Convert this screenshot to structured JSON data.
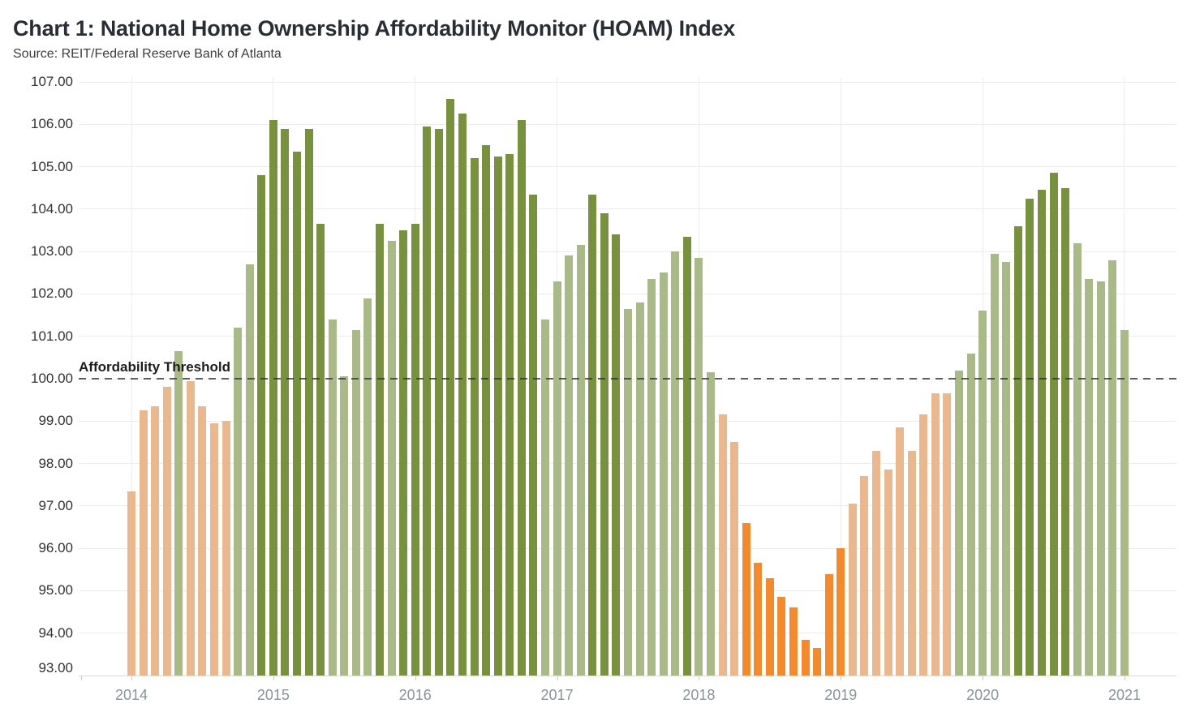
{
  "header": {
    "title": "Chart 1: National Home Ownership Affordability Monitor (HOAM) Index",
    "source": "Source: REIT/Federal Reserve Bank of Atlanta"
  },
  "chart_data": {
    "type": "bar",
    "title": "Chart 1: National Home Ownership Affordability Monitor (HOAM) Index",
    "subtitle": "Source: REIT/Federal Reserve Bank of Atlanta",
    "xlabel": "",
    "ylabel": "",
    "ylim": [
      93,
      107.1
    ],
    "grid": "horizontal gridlines every 1.00 plus faint vertical gridlines at each January",
    "legend_position": "none",
    "y_tick_labels": [
      "93.00",
      "94.00",
      "95.00",
      "96.00",
      "97.00",
      "98.00",
      "99.00",
      "100.00",
      "101.00",
      "102.00",
      "103.00",
      "104.00",
      "105.00",
      "106.00",
      "107.00"
    ],
    "x_tick_labels": [
      "2014",
      "2015",
      "2016",
      "2017",
      "2018",
      "2019",
      "2020",
      "2021"
    ],
    "threshold": {
      "value": 100,
      "label": "Affordability Threshold"
    },
    "colors": {
      "dark-green": "#78913f",
      "light-green": "#a9ba88",
      "light-orange": "#e9b88e",
      "dark-orange": "#f38b2e"
    },
    "series": [
      {
        "name": "HOAM Index",
        "points": [
          {
            "month": "Jan 2014",
            "value": 97.35,
            "band": "light-orange"
          },
          {
            "month": "Feb 2014",
            "value": 99.25,
            "band": "light-orange"
          },
          {
            "month": "Mar 2014",
            "value": 99.35,
            "band": "light-orange"
          },
          {
            "month": "Apr 2014",
            "value": 99.8,
            "band": "light-orange"
          },
          {
            "month": "May 2014",
            "value": 100.65,
            "band": "light-green"
          },
          {
            "month": "Jun 2014",
            "value": 99.95,
            "band": "light-orange"
          },
          {
            "month": "Jul 2014",
            "value": 99.35,
            "band": "light-orange"
          },
          {
            "month": "Aug 2014",
            "value": 98.95,
            "band": "light-orange"
          },
          {
            "month": "Sep 2014",
            "value": 99.0,
            "band": "light-orange"
          },
          {
            "month": "Oct 2014",
            "value": 101.2,
            "band": "light-green"
          },
          {
            "month": "Nov 2014",
            "value": 102.7,
            "band": "light-green"
          },
          {
            "month": "Dec 2014",
            "value": 104.8,
            "band": "dark-green"
          },
          {
            "month": "Jan 2015",
            "value": 106.1,
            "band": "dark-green"
          },
          {
            "month": "Feb 2015",
            "value": 105.9,
            "band": "dark-green"
          },
          {
            "month": "Mar 2015",
            "value": 105.35,
            "band": "dark-green"
          },
          {
            "month": "Apr 2015",
            "value": 105.9,
            "band": "dark-green"
          },
          {
            "month": "May 2015",
            "value": 103.65,
            "band": "dark-green"
          },
          {
            "month": "Jun 2015",
            "value": 101.4,
            "band": "light-green"
          },
          {
            "month": "Jul 2015",
            "value": 100.05,
            "band": "light-green"
          },
          {
            "month": "Aug 2015",
            "value": 101.15,
            "band": "light-green"
          },
          {
            "month": "Sep 2015",
            "value": 101.9,
            "band": "light-green"
          },
          {
            "month": "Oct 2015",
            "value": 103.65,
            "band": "dark-green"
          },
          {
            "month": "Nov 2015",
            "value": 103.25,
            "band": "light-green"
          },
          {
            "month": "Dec 2015",
            "value": 103.5,
            "band": "dark-green"
          },
          {
            "month": "Jan 2016",
            "value": 103.65,
            "band": "dark-green"
          },
          {
            "month": "Feb 2016",
            "value": 105.95,
            "band": "dark-green"
          },
          {
            "month": "Mar 2016",
            "value": 105.9,
            "band": "dark-green"
          },
          {
            "month": "Apr 2016",
            "value": 106.6,
            "band": "dark-green"
          },
          {
            "month": "May 2016",
            "value": 106.25,
            "band": "dark-green"
          },
          {
            "month": "Jun 2016",
            "value": 105.2,
            "band": "dark-green"
          },
          {
            "month": "Jul 2016",
            "value": 105.5,
            "band": "dark-green"
          },
          {
            "month": "Aug 2016",
            "value": 105.25,
            "band": "dark-green"
          },
          {
            "month": "Sep 2016",
            "value": 105.3,
            "band": "dark-green"
          },
          {
            "month": "Oct 2016",
            "value": 106.1,
            "band": "dark-green"
          },
          {
            "month": "Nov 2016",
            "value": 104.35,
            "band": "dark-green"
          },
          {
            "month": "Dec 2016",
            "value": 101.4,
            "band": "light-green"
          },
          {
            "month": "Jan 2017",
            "value": 102.3,
            "band": "light-green"
          },
          {
            "month": "Feb 2017",
            "value": 102.9,
            "band": "light-green"
          },
          {
            "month": "Mar 2017",
            "value": 103.15,
            "band": "light-green"
          },
          {
            "month": "Apr 2017",
            "value": 104.35,
            "band": "dark-green"
          },
          {
            "month": "May 2017",
            "value": 103.9,
            "band": "dark-green"
          },
          {
            "month": "Jun 2017",
            "value": 103.4,
            "band": "dark-green"
          },
          {
            "month": "Jul 2017",
            "value": 101.65,
            "band": "light-green"
          },
          {
            "month": "Aug 2017",
            "value": 101.8,
            "band": "light-green"
          },
          {
            "month": "Sep 2017",
            "value": 102.35,
            "band": "light-green"
          },
          {
            "month": "Oct 2017",
            "value": 102.5,
            "band": "light-green"
          },
          {
            "month": "Nov 2017",
            "value": 103.0,
            "band": "light-green"
          },
          {
            "month": "Dec 2017",
            "value": 103.35,
            "band": "dark-green"
          },
          {
            "month": "Jan 2018",
            "value": 102.85,
            "band": "light-green"
          },
          {
            "month": "Feb 2018",
            "value": 100.15,
            "band": "light-green"
          },
          {
            "month": "Mar 2018",
            "value": 99.15,
            "band": "light-orange"
          },
          {
            "month": "Apr 2018",
            "value": 98.5,
            "band": "light-orange"
          },
          {
            "month": "May 2018",
            "value": 96.6,
            "band": "dark-orange"
          },
          {
            "month": "Jun 2018",
            "value": 95.65,
            "band": "dark-orange"
          },
          {
            "month": "Jul 2018",
            "value": 95.3,
            "band": "dark-orange"
          },
          {
            "month": "Aug 2018",
            "value": 94.85,
            "band": "dark-orange"
          },
          {
            "month": "Sep 2018",
            "value": 94.6,
            "band": "dark-orange"
          },
          {
            "month": "Oct 2018",
            "value": 93.85,
            "band": "dark-orange"
          },
          {
            "month": "Nov 2018",
            "value": 93.65,
            "band": "dark-orange"
          },
          {
            "month": "Dec 2018",
            "value": 95.4,
            "band": "dark-orange"
          },
          {
            "month": "Jan 2019",
            "value": 96.0,
            "band": "dark-orange"
          },
          {
            "month": "Feb 2019",
            "value": 97.05,
            "band": "light-orange"
          },
          {
            "month": "Mar 2019",
            "value": 97.7,
            "band": "light-orange"
          },
          {
            "month": "Apr 2019",
            "value": 98.3,
            "band": "light-orange"
          },
          {
            "month": "May 2019",
            "value": 97.85,
            "band": "light-orange"
          },
          {
            "month": "Jun 2019",
            "value": 98.85,
            "band": "light-orange"
          },
          {
            "month": "Jul 2019",
            "value": 98.3,
            "band": "light-orange"
          },
          {
            "month": "Aug 2019",
            "value": 99.15,
            "band": "light-orange"
          },
          {
            "month": "Sep 2019",
            "value": 99.65,
            "band": "light-orange"
          },
          {
            "month": "Oct 2019",
            "value": 99.65,
            "band": "light-orange"
          },
          {
            "month": "Nov 2019",
            "value": 100.2,
            "band": "light-green"
          },
          {
            "month": "Dec 2019",
            "value": 100.6,
            "band": "light-green"
          },
          {
            "month": "Jan 2020",
            "value": 101.6,
            "band": "light-green"
          },
          {
            "month": "Feb 2020",
            "value": 102.95,
            "band": "light-green"
          },
          {
            "month": "Mar 2020",
            "value": 102.75,
            "band": "light-green"
          },
          {
            "month": "Apr 2020",
            "value": 103.6,
            "band": "dark-green"
          },
          {
            "month": "May 2020",
            "value": 104.25,
            "band": "dark-green"
          },
          {
            "month": "Jun 2020",
            "value": 104.45,
            "band": "dark-green"
          },
          {
            "month": "Jul 2020",
            "value": 104.85,
            "band": "dark-green"
          },
          {
            "month": "Aug 2020",
            "value": 104.5,
            "band": "dark-green"
          },
          {
            "month": "Sep 2020",
            "value": 103.2,
            "band": "light-green"
          },
          {
            "month": "Oct 2020",
            "value": 102.35,
            "band": "light-green"
          },
          {
            "month": "Nov 2020",
            "value": 102.3,
            "band": "light-green"
          },
          {
            "month": "Dec 2020",
            "value": 102.8,
            "band": "light-green"
          },
          {
            "month": "Jan 2021",
            "value": 101.15,
            "band": "light-green"
          }
        ]
      }
    ]
  }
}
